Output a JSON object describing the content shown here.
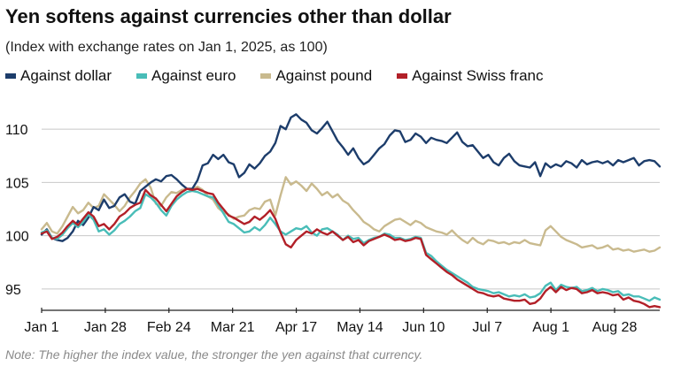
{
  "title": "Yen softens against currencies other than dollar",
  "subtitle": "(Index with exchange rates on Jan 1, 2025, as 100)",
  "note": "Note: The higher the index value, the stronger the yen against that currency.",
  "chart_data": {
    "type": "line",
    "ylim": [
      93,
      113
    ],
    "yticks": [
      95,
      100,
      105,
      110
    ],
    "x_ticks": [
      "Jan 1",
      "Jan 28",
      "Feb 24",
      "Mar 21",
      "Apr 17",
      "May 14",
      "Jun 10",
      "Jul 7",
      "Aug 1",
      "Aug 28"
    ],
    "grid": true,
    "legend_position": "top",
    "series": [
      {
        "name": "Against dollar",
        "color": "#1d3d6b",
        "values": [
          100.1,
          100.6,
          99.8,
          99.6,
          99.5,
          99.8,
          100.4,
          101.4,
          101.0,
          101.7,
          102.7,
          102.4,
          103.4,
          102.6,
          102.8,
          103.6,
          103.9,
          103.2,
          103.0,
          104.2,
          104.6,
          105.0,
          105.3,
          105.1,
          105.6,
          105.7,
          105.3,
          104.8,
          104.4,
          104.4,
          105.2,
          106.6,
          106.8,
          107.6,
          107.2,
          107.6,
          106.9,
          106.7,
          105.5,
          105.9,
          106.7,
          106.3,
          106.8,
          107.5,
          107.9,
          108.7,
          110.3,
          110.0,
          111.1,
          111.4,
          110.9,
          110.6,
          109.9,
          109.6,
          110.1,
          110.7,
          109.8,
          108.9,
          108.3,
          107.6,
          108.2,
          107.3,
          106.7,
          107.0,
          107.6,
          108.2,
          108.6,
          109.4,
          109.9,
          109.8,
          108.8,
          109.0,
          109.6,
          109.3,
          108.7,
          109.2,
          109.0,
          108.9,
          108.7,
          109.2,
          109.7,
          108.8,
          108.4,
          108.5,
          107.9,
          107.3,
          107.6,
          106.9,
          106.6,
          107.3,
          107.7,
          107.0,
          106.6,
          106.5,
          106.4,
          106.9,
          105.6,
          106.8,
          106.4,
          106.7,
          106.5,
          107.0,
          106.8,
          106.4,
          107.1,
          106.7,
          106.9,
          107.0,
          106.8,
          107.0,
          106.6,
          107.1,
          106.9,
          107.1,
          107.3,
          106.6,
          107.0,
          107.1,
          107.0,
          106.5
        ]
      },
      {
        "name": "Against euro",
        "color": "#49bdb8",
        "values": [
          100.3,
          100.5,
          99.8,
          99.7,
          100.1,
          100.7,
          101.2,
          100.8,
          101.3,
          102.0,
          101.5,
          100.4,
          100.6,
          100.1,
          100.5,
          101.1,
          101.4,
          101.8,
          102.3,
          102.6,
          103.9,
          103.6,
          103.1,
          102.4,
          101.9,
          102.8,
          103.4,
          103.8,
          104.1,
          104.2,
          104.1,
          103.9,
          103.7,
          103.6,
          102.9,
          102.1,
          101.3,
          101.1,
          100.7,
          100.3,
          100.4,
          100.8,
          100.5,
          101.0,
          101.7,
          101.1,
          100.4,
          100.1,
          100.4,
          100.7,
          100.6,
          100.9,
          100.3,
          100.0,
          100.6,
          100.7,
          100.4,
          100.1,
          99.6,
          100.0,
          99.7,
          99.8,
          99.3,
          99.6,
          99.8,
          99.9,
          100.2,
          100.1,
          99.8,
          99.8,
          99.6,
          99.7,
          99.9,
          99.8,
          98.4,
          98.1,
          97.6,
          97.2,
          96.8,
          96.5,
          96.2,
          95.9,
          95.6,
          95.2,
          95.0,
          94.9,
          94.8,
          94.6,
          94.7,
          94.5,
          94.3,
          94.4,
          94.3,
          94.5,
          94.2,
          94.3,
          94.6,
          95.3,
          95.6,
          94.9,
          95.4,
          95.2,
          95.1,
          95.2,
          94.8,
          94.9,
          95.1,
          94.8,
          95.0,
          94.9,
          94.7,
          94.8,
          94.4,
          94.5,
          94.3,
          94.3,
          94.1,
          93.9,
          94.2,
          94.0
        ]
      },
      {
        "name": "Against pound",
        "color": "#c9ba8e",
        "values": [
          100.6,
          101.2,
          100.4,
          100.2,
          100.9,
          101.8,
          102.7,
          102.1,
          102.4,
          103.1,
          102.6,
          102.8,
          103.9,
          103.4,
          102.9,
          102.3,
          102.8,
          103.6,
          104.2,
          104.9,
          105.3,
          104.5,
          103.0,
          102.8,
          103.6,
          104.1,
          104.0,
          104.3,
          104.4,
          104.4,
          104.6,
          104.3,
          103.7,
          103.4,
          102.6,
          102.2,
          102.0,
          101.6,
          101.8,
          101.9,
          102.4,
          102.6,
          102.5,
          103.2,
          103.4,
          101.9,
          103.8,
          105.5,
          104.8,
          105.1,
          104.7,
          104.2,
          104.9,
          104.4,
          103.8,
          104.1,
          103.6,
          103.9,
          103.3,
          103.0,
          102.4,
          101.9,
          101.3,
          101.0,
          100.6,
          100.4,
          100.9,
          101.2,
          101.5,
          101.6,
          101.3,
          101.0,
          101.4,
          101.2,
          100.8,
          100.6,
          100.4,
          100.3,
          100.1,
          100.5,
          100.0,
          99.6,
          99.3,
          99.8,
          99.4,
          99.2,
          99.6,
          99.5,
          99.3,
          99.4,
          99.2,
          99.4,
          99.3,
          99.6,
          99.3,
          99.2,
          99.1,
          100.5,
          100.9,
          100.4,
          99.9,
          99.6,
          99.4,
          99.2,
          98.9,
          99.0,
          99.1,
          98.8,
          98.9,
          99.1,
          98.7,
          98.8,
          98.6,
          98.7,
          98.5,
          98.6,
          98.7,
          98.5,
          98.6,
          98.9
        ]
      },
      {
        "name": "Against Swiss franc",
        "color": "#b22028",
        "values": [
          100.2,
          100.4,
          99.7,
          99.9,
          100.3,
          100.9,
          101.4,
          101.0,
          101.6,
          102.2,
          101.8,
          100.9,
          101.1,
          100.6,
          101.1,
          101.8,
          102.1,
          102.6,
          102.9,
          103.1,
          104.3,
          103.8,
          103.5,
          102.9,
          102.3,
          103.0,
          103.7,
          104.1,
          104.4,
          104.3,
          104.4,
          104.2,
          104.0,
          103.9,
          103.1,
          102.5,
          101.9,
          101.7,
          101.4,
          101.1,
          101.3,
          101.8,
          101.5,
          101.9,
          102.4,
          101.6,
          100.3,
          99.2,
          98.9,
          99.6,
          100.0,
          100.4,
          100.2,
          100.6,
          100.3,
          100.1,
          100.4,
          100.0,
          99.6,
          99.9,
          99.4,
          99.6,
          99.1,
          99.5,
          99.7,
          99.9,
          100.1,
          99.9,
          99.6,
          99.7,
          99.5,
          99.6,
          99.8,
          99.7,
          98.2,
          97.8,
          97.4,
          97.0,
          96.6,
          96.3,
          95.9,
          95.6,
          95.3,
          95.0,
          94.7,
          94.6,
          94.4,
          94.3,
          94.4,
          94.1,
          94.0,
          93.9,
          93.9,
          94.0,
          93.6,
          93.7,
          94.1,
          94.8,
          95.2,
          94.7,
          95.2,
          94.9,
          95.1,
          95.0,
          94.6,
          94.7,
          94.9,
          94.6,
          94.7,
          94.6,
          94.4,
          94.5,
          94.0,
          94.2,
          93.9,
          93.8,
          93.6,
          93.3,
          93.4,
          93.3
        ]
      }
    ]
  }
}
